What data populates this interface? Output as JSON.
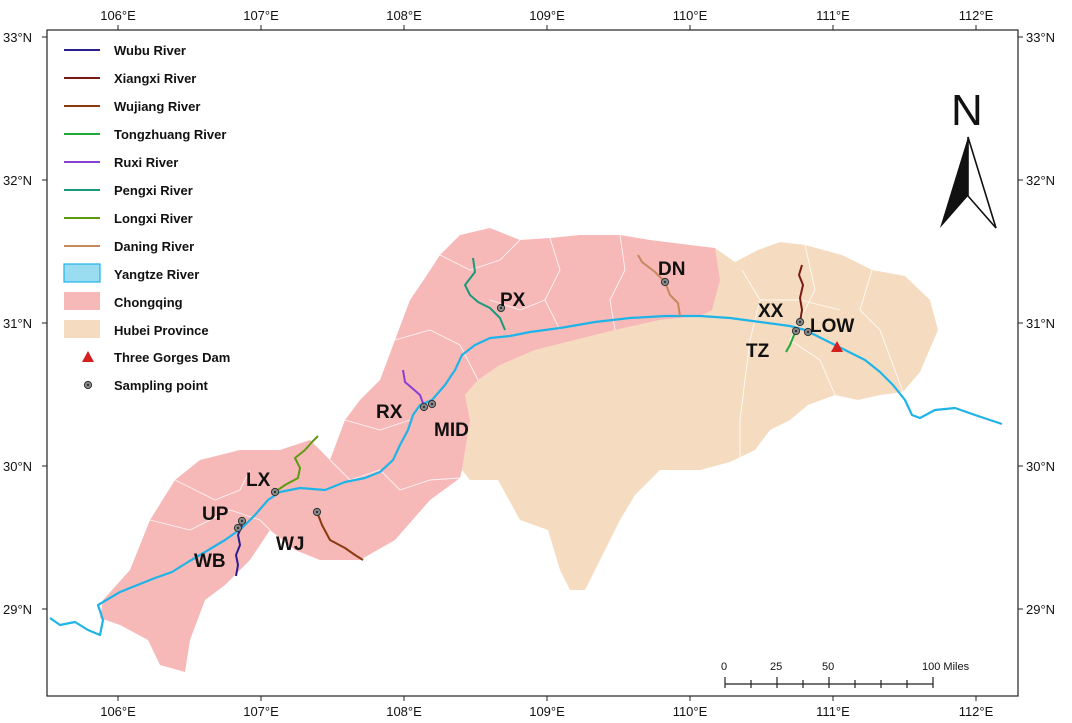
{
  "map": {
    "ticks_top": [
      "106°E",
      "107°E",
      "108°E",
      "109°E",
      "110°E",
      "111°E",
      "112°E"
    ],
    "ticks_bottom": [
      "106°E",
      "107°E",
      "108°E",
      "109°E",
      "110°E",
      "111°E",
      "112°E"
    ],
    "ticks_left": [
      "33°N",
      "32°N",
      "31°N",
      "30°N",
      "29°N"
    ],
    "ticks_right": [
      "33°N",
      "32°N",
      "31°N",
      "30°N",
      "29°N"
    ],
    "legend": [
      {
        "label": "Wubu River",
        "color": "#2a1f8f",
        "symbol": "line"
      },
      {
        "label": "Xiangxi River",
        "color": "#7a1a14",
        "symbol": "line"
      },
      {
        "label": "Wujiang River",
        "color": "#8b3a0f",
        "symbol": "line"
      },
      {
        "label": "Tongzhuang River",
        "color": "#22a83a",
        "symbol": "line"
      },
      {
        "label": "Ruxi River",
        "color": "#8a3fd1",
        "symbol": "line"
      },
      {
        "label": "Pengxi River",
        "color": "#1a9a7a",
        "symbol": "line"
      },
      {
        "label": "Longxi River",
        "color": "#5e9a14",
        "symbol": "line"
      },
      {
        "label": "Daning River",
        "color": "#c48a5e",
        "symbol": "line"
      },
      {
        "label": "Yangtze River",
        "color": "#9adcf0",
        "symbol": "box"
      },
      {
        "label": "Chongqing",
        "color": "#f7b8b8",
        "symbol": "box"
      },
      {
        "label": "Hubei Province",
        "color": "#f5dcc0",
        "symbol": "box"
      },
      {
        "label": "Three Gorges Dam",
        "color": "#d21f1f",
        "symbol": "triangle"
      },
      {
        "label": "Sampling point",
        "color": "#888888",
        "symbol": "point"
      }
    ],
    "sites": [
      "DN",
      "PX",
      "XX",
      "LOW",
      "TZ",
      "RX",
      "MID",
      "LX",
      "UP",
      "WJ",
      "WB"
    ],
    "north_label": "N",
    "scale_labels": [
      "0",
      "25",
      "50",
      "100 Miles"
    ],
    "colors": {
      "yangtze": "#1fb4e8",
      "chongqing": "#f7b8b8",
      "hubei": "#f5dcc0",
      "boundary": "#ffffff"
    }
  }
}
